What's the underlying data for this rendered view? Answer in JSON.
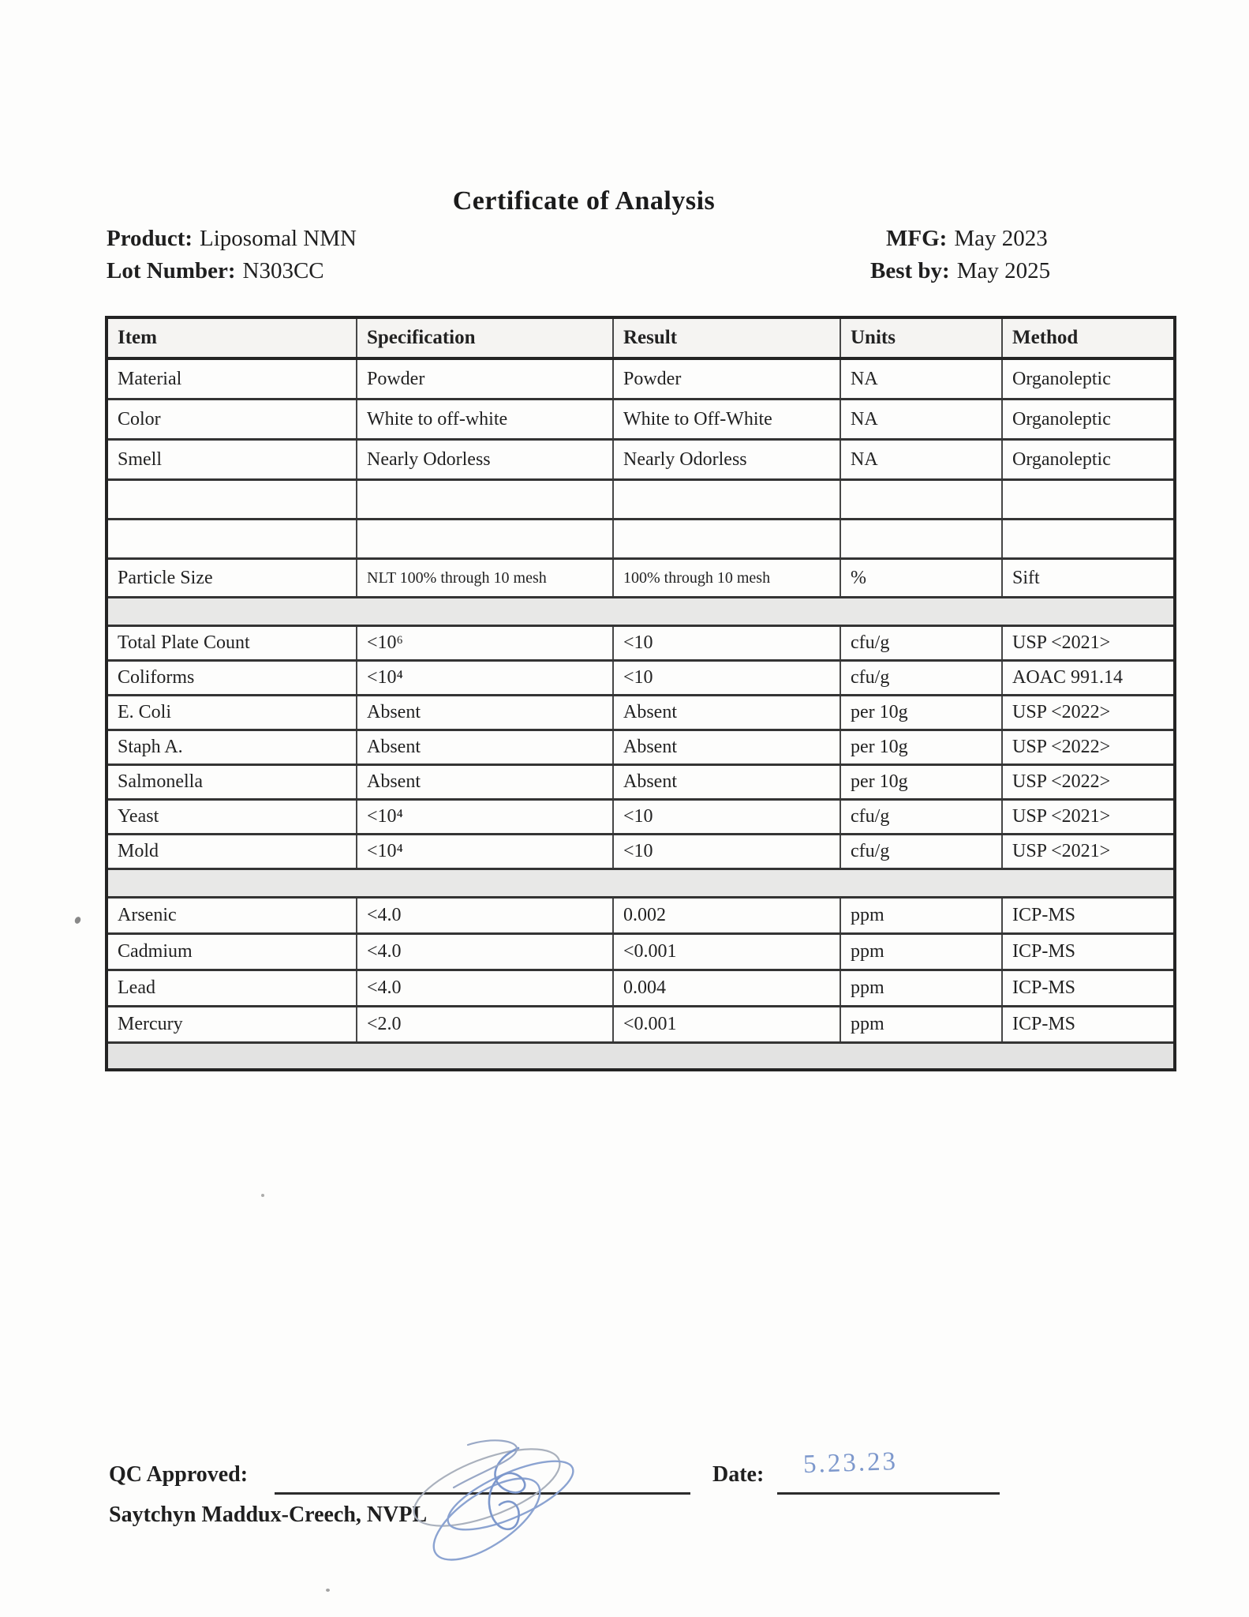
{
  "header": {
    "title": "Certificate of Analysis",
    "product_label": "Product:",
    "product_value": "Liposomal NMN",
    "lot_label": "Lot Number:",
    "lot_value": "N303CC",
    "mfg_label": "MFG:",
    "mfg_value": "May 2023",
    "best_by_label": "Best by:",
    "best_by_value": "May 2025"
  },
  "table": {
    "columns": [
      "Item",
      "Specification",
      "Result",
      "Units",
      "Method"
    ],
    "rows": [
      {
        "kind": "std",
        "item": "Material",
        "spec": "Powder",
        "result": "Powder",
        "units": "NA",
        "method": "Organoleptic"
      },
      {
        "kind": "std",
        "item": "Color",
        "spec": "White to off-white",
        "result": "White to Off-White",
        "units": "NA",
        "method": "Organoleptic"
      },
      {
        "kind": "std",
        "item": "Smell",
        "spec": "Nearly Odorless",
        "result": "Nearly Odorless",
        "units": "NA",
        "method": "Organoleptic"
      },
      {
        "kind": "empty",
        "item": "",
        "spec": "",
        "result": "",
        "units": "",
        "method": ""
      },
      {
        "kind": "empty",
        "item": "",
        "spec": "",
        "result": "",
        "units": "",
        "method": ""
      },
      {
        "kind": "particle",
        "item": "Particle Size",
        "spec": "NLT 100% through 10 mesh",
        "result": "100% through 10 mesh",
        "units": "%",
        "method": "Sift"
      },
      {
        "kind": "separator"
      },
      {
        "kind": "micro",
        "item": "Total Plate Count",
        "spec": "<10⁶",
        "result": "<10",
        "units": "cfu/g",
        "method": "USP <2021>"
      },
      {
        "kind": "micro",
        "item": "Coliforms",
        "spec": "<10⁴",
        "result": "<10",
        "units": "cfu/g",
        "method": "AOAC 991.14"
      },
      {
        "kind": "micro",
        "item": "E. Coli",
        "spec": "Absent",
        "result": "Absent",
        "units": "per 10g",
        "method": "USP <2022>"
      },
      {
        "kind": "micro",
        "item": "Staph A.",
        "spec": "Absent",
        "result": "Absent",
        "units": "per 10g",
        "method": "USP <2022>"
      },
      {
        "kind": "micro",
        "item": "Salmonella",
        "spec": "Absent",
        "result": "Absent",
        "units": "per 10g",
        "method": "USP <2022>"
      },
      {
        "kind": "micro",
        "item": "Yeast",
        "spec": "<10⁴",
        "result": "<10",
        "units": "cfu/g",
        "method": "USP <2021>"
      },
      {
        "kind": "micro",
        "item": "Mold",
        "spec": "<10⁴",
        "result": "<10",
        "units": "cfu/g",
        "method": "USP <2021>"
      },
      {
        "kind": "separator"
      },
      {
        "kind": "metal",
        "item": "Arsenic",
        "spec": "<4.0",
        "result": "  0.002",
        "units": "ppm",
        "method": "ICP-MS"
      },
      {
        "kind": "metal",
        "item": "Cadmium",
        "spec": "<4.0",
        "result": "<0.001",
        "units": "ppm",
        "method": "ICP-MS"
      },
      {
        "kind": "metal",
        "item": "Lead",
        "spec": "<4.0",
        "result": "  0.004",
        "units": "ppm",
        "method": "ICP-MS"
      },
      {
        "kind": "metal",
        "item": "Mercury",
        "spec": "<2.0",
        "result": "<0.001",
        "units": "ppm",
        "method": "ICP-MS"
      },
      {
        "kind": "separator_bottom"
      }
    ]
  },
  "footer": {
    "qc_label": "QC Approved:",
    "date_label": "Date:",
    "date_value": "5.23.23",
    "approver": "Saytchyn Maddux-Creech, NVPL"
  },
  "colors": {
    "ink": "#1f1f1f",
    "signature_blue": "#8ba3d1",
    "signature_gray_blue": "#aab1bd",
    "separator_gray": "#e8e8e7",
    "header_row_bg": "#f5f4f2"
  }
}
